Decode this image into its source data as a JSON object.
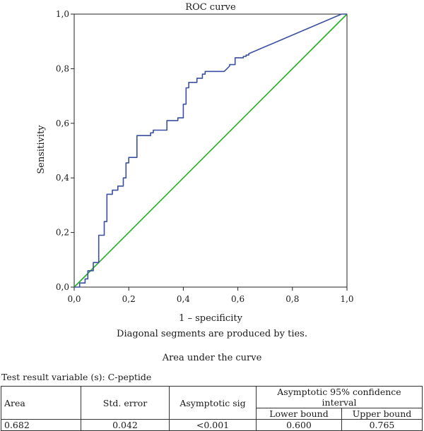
{
  "chart_data": {
    "type": "line",
    "title": "ROC curve",
    "xlabel": "1 – specificity",
    "ylabel": "Sensitivity",
    "xlim": [
      0,
      1
    ],
    "ylim": [
      0,
      1
    ],
    "xticks": [
      "0,0",
      "0,2",
      "0,4",
      "0,6",
      "0,8",
      "1,0"
    ],
    "yticks": [
      "0,0",
      "0,2",
      "0,4",
      "0,6",
      "0,8",
      "1,0"
    ],
    "grid": false,
    "series": [
      {
        "color": "#3a4fa0",
        "x": [
          0,
          0.02,
          0.02,
          0.04,
          0.04,
          0.05,
          0.05,
          0.07,
          0.07,
          0.09,
          0.09,
          0.11,
          0.11,
          0.12,
          0.12,
          0.14,
          0.14,
          0.16,
          0.16,
          0.18,
          0.18,
          0.19,
          0.19,
          0.2,
          0.2,
          0.23,
          0.23,
          0.28,
          0.28,
          0.29,
          0.29,
          0.34,
          0.34,
          0.38,
          0.38,
          0.4,
          0.4,
          0.41,
          0.41,
          0.42,
          0.42,
          0.45,
          0.45,
          0.47,
          0.47,
          0.48,
          0.48,
          0.55,
          0.57,
          0.57,
          0.59,
          0.59,
          0.62,
          0.62,
          0.63,
          0.63,
          0.64,
          0.64,
          0.98,
          1.0
        ],
        "y": [
          0,
          0,
          0.015,
          0.015,
          0.03,
          0.03,
          0.06,
          0.06,
          0.09,
          0.09,
          0.19,
          0.19,
          0.24,
          0.24,
          0.34,
          0.34,
          0.355,
          0.355,
          0.37,
          0.37,
          0.4,
          0.4,
          0.455,
          0.455,
          0.475,
          0.475,
          0.555,
          0.555,
          0.565,
          0.565,
          0.575,
          0.575,
          0.61,
          0.61,
          0.62,
          0.62,
          0.67,
          0.67,
          0.73,
          0.73,
          0.75,
          0.75,
          0.765,
          0.765,
          0.78,
          0.78,
          0.79,
          0.79,
          0.81,
          0.815,
          0.815,
          0.84,
          0.84,
          0.845,
          0.845,
          0.85,
          0.85,
          0.855,
          1.0,
          1.0
        ]
      },
      {
        "color": "#22b022",
        "x": [
          0,
          1
        ],
        "y": [
          0,
          1
        ]
      }
    ]
  },
  "footnote": "Diagonal segments are produced by ties.",
  "auc_heading": "Area under the curve",
  "test_variable": "Test result variable (s): C-peptide",
  "table": {
    "headers": {
      "area": "Area",
      "std_error": "Std. error",
      "asymptotic_sig": "Asymptotic sig",
      "ci_group": "Asymptotic 95% confidence interval",
      "lower": "Lower bound",
      "upper": "Upper bound"
    },
    "row": {
      "area": "0.682",
      "std_error": "0.042",
      "asymptotic_sig": "<0.001",
      "lower": "0.600",
      "upper": "0.765"
    }
  }
}
